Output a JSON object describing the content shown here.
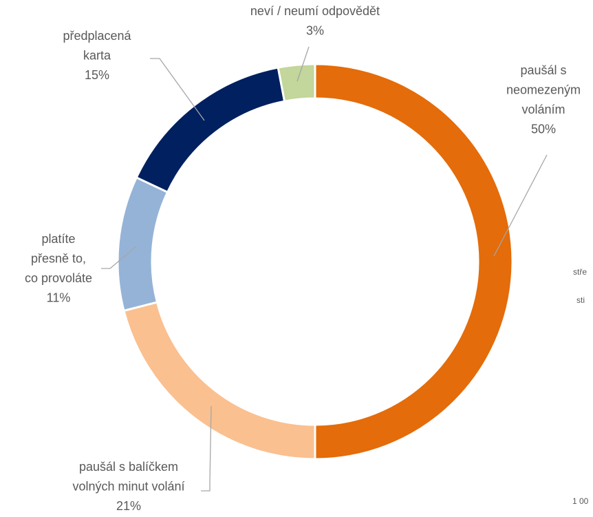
{
  "chart_data": {
    "type": "donut",
    "categories": [
      "paušál s\nneomezeným\nvoláním",
      "paušál s balíčkem\nvolných minut volání",
      "platíte\npřesně to,\nco provoláte",
      "předplacená\nkarta",
      "neví / neumí odpovědět"
    ],
    "values": [
      50,
      21,
      11,
      15,
      3
    ],
    "value_labels": [
      "50%",
      "21%",
      "11%",
      "15%",
      "3%"
    ],
    "colors": [
      "#e46c0a",
      "#fac090",
      "#95b3d7",
      "#002060",
      "#c3d69b"
    ],
    "annotations": [
      "stře",
      "sti",
      "1 00"
    ]
  }
}
